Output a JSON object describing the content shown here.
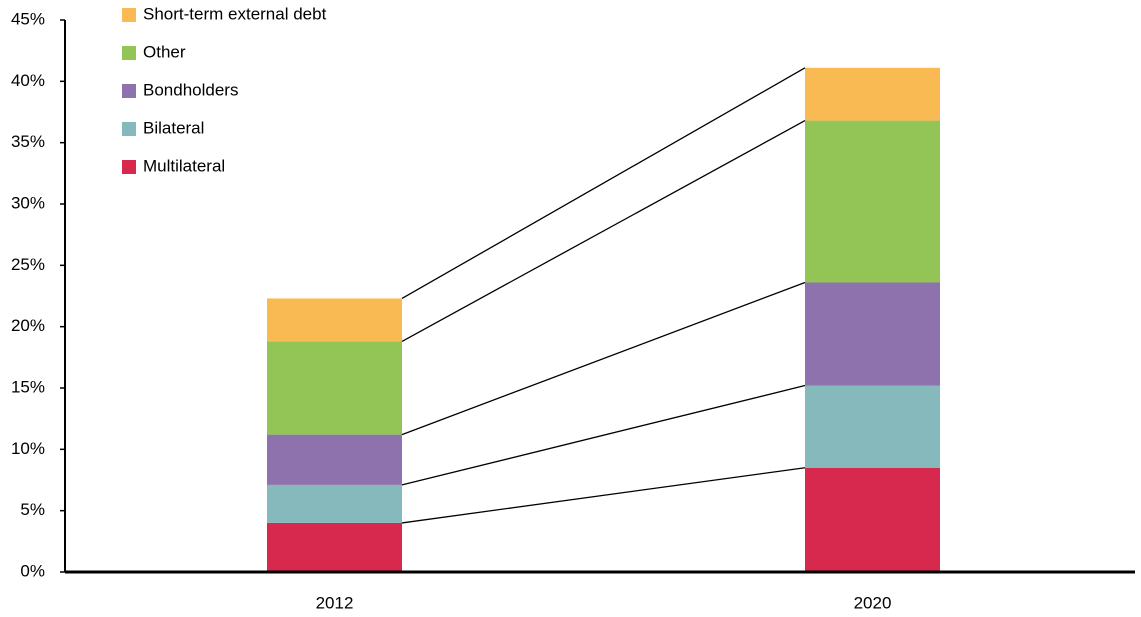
{
  "chart_data": {
    "type": "stacked_bar",
    "categories": [
      "2012",
      "2020"
    ],
    "series": [
      {
        "name": "Multilateral",
        "color": "#d7284e",
        "values": [
          4.0,
          8.5
        ]
      },
      {
        "name": "Bilateral",
        "color": "#86b9bc",
        "values": [
          3.1,
          6.7
        ]
      },
      {
        "name": "Bondholders",
        "color": "#8e72ae",
        "values": [
          4.1,
          8.4
        ]
      },
      {
        "name": "Other",
        "color": "#93c456",
        "values": [
          7.6,
          13.2
        ]
      },
      {
        "name": "Short-term external debt",
        "color": "#f9b953",
        "values": [
          3.5,
          4.3
        ]
      }
    ],
    "ylim": [
      0,
      45
    ],
    "yticks": [
      {
        "value": 0,
        "label": "0%"
      },
      {
        "value": 5,
        "label": "5%"
      },
      {
        "value": 10,
        "label": "10%"
      },
      {
        "value": 15,
        "label": "15%"
      },
      {
        "value": 20,
        "label": "20%"
      },
      {
        "value": 25,
        "label": "25%"
      },
      {
        "value": 30,
        "label": "30%"
      },
      {
        "value": 35,
        "label": "35%"
      },
      {
        "value": 40,
        "label": "40%"
      },
      {
        "value": 45,
        "label": "45%"
      }
    ],
    "legend": "top-left"
  }
}
